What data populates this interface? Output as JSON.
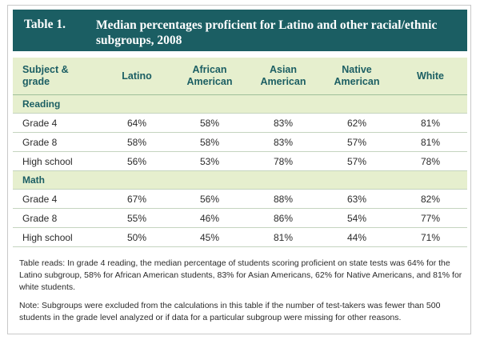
{
  "title": {
    "label": "Table 1.",
    "text": "Median percentages proficient for Latino and other racial/ethnic subgroups, 2008"
  },
  "table": {
    "headers": [
      "Subject & grade",
      "Latino",
      "African American",
      "Asian American",
      "Native American",
      "White"
    ],
    "sections": [
      {
        "name": "Reading",
        "rows": [
          {
            "label": "Grade 4",
            "values": [
              "64%",
              "58%",
              "83%",
              "62%",
              "81%"
            ]
          },
          {
            "label": "Grade 8",
            "values": [
              "58%",
              "58%",
              "83%",
              "57%",
              "81%"
            ]
          },
          {
            "label": "High school",
            "values": [
              "56%",
              "53%",
              "78%",
              "57%",
              "78%"
            ]
          }
        ]
      },
      {
        "name": "Math",
        "rows": [
          {
            "label": "Grade 4",
            "values": [
              "67%",
              "56%",
              "88%",
              "63%",
              "82%"
            ]
          },
          {
            "label": "Grade 8",
            "values": [
              "55%",
              "46%",
              "86%",
              "54%",
              "77%"
            ]
          },
          {
            "label": "High school",
            "values": [
              "50%",
              "45%",
              "81%",
              "44%",
              "71%"
            ]
          }
        ]
      }
    ]
  },
  "notes": {
    "table_reads": "Table reads: In grade 4 reading, the median percentage of students scoring proficient on state tests was 64% for the Latino subgroup, 58% for African American students, 83% for Asian Americans, 62% for Native Americans, and 81% for white students.",
    "note": "Note: Subgroups were excluded from the calculations in this table if the number of test-takers was fewer than 500 students in the grade level analyzed or if data for a particular subgroup were missing for other reasons."
  },
  "colors": {
    "title_bar": "#1b5e63",
    "header_fill": "#e6efce",
    "accent_text": "#1b5e63"
  }
}
